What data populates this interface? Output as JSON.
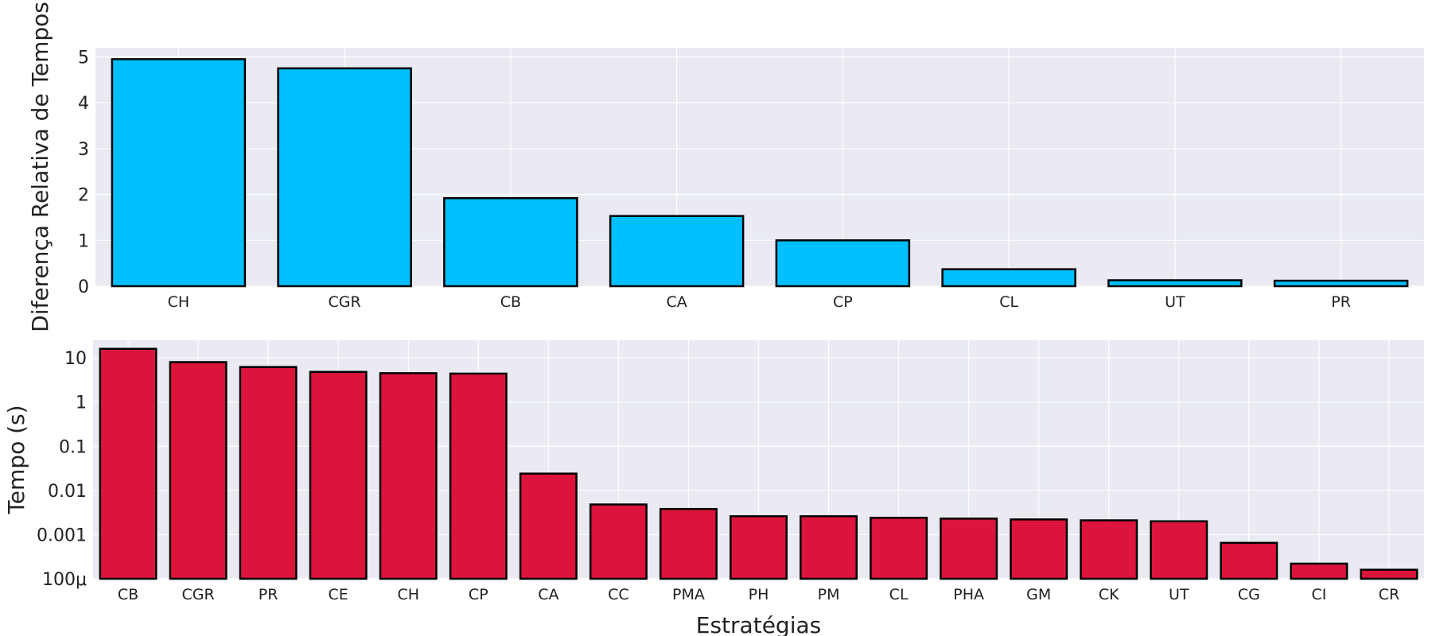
{
  "chart_data": [
    {
      "type": "bar",
      "title": "",
      "xlabel": "",
      "ylabel": "Diferença Relativa de Tempos",
      "ylim": [
        0,
        5.2
      ],
      "yticks": [
        0,
        1,
        2,
        3,
        4,
        5
      ],
      "ytick_labels": [
        "0",
        "1",
        "2",
        "3",
        "4",
        "5"
      ],
      "grid": true,
      "color": "#00bfff",
      "categories": [
        "CH",
        "CGR",
        "CB",
        "CA",
        "CP",
        "CL",
        "UT",
        "PR"
      ],
      "values": [
        4.95,
        4.75,
        1.92,
        1.53,
        1.0,
        0.37,
        0.13,
        0.12
      ]
    },
    {
      "type": "bar",
      "title": "",
      "xlabel": "Estratégias",
      "ylabel": "Tempo (s)",
      "yscale": "log",
      "ylim": [
        0.0001,
        25
      ],
      "yticks": [
        0.0001,
        0.001,
        0.01,
        0.1,
        1,
        10
      ],
      "ytick_labels": [
        "100μ",
        "0.001",
        "0.01",
        "0.1",
        "1",
        "10"
      ],
      "grid": true,
      "color": "#dc143c",
      "categories": [
        "CB",
        "CGR",
        "PR",
        "CE",
        "CH",
        "CP",
        "CA",
        "CC",
        "PMA",
        "PH",
        "PM",
        "CL",
        "PHA",
        "GM",
        "CK",
        "UT",
        "CG",
        "CI",
        "CR"
      ],
      "values": [
        16,
        8,
        6.2,
        4.8,
        4.5,
        4.4,
        0.024,
        0.0048,
        0.0038,
        0.0026,
        0.0026,
        0.0024,
        0.0023,
        0.0022,
        0.0021,
        0.002,
        0.00065,
        0.00022,
        0.00016
      ]
    }
  ]
}
